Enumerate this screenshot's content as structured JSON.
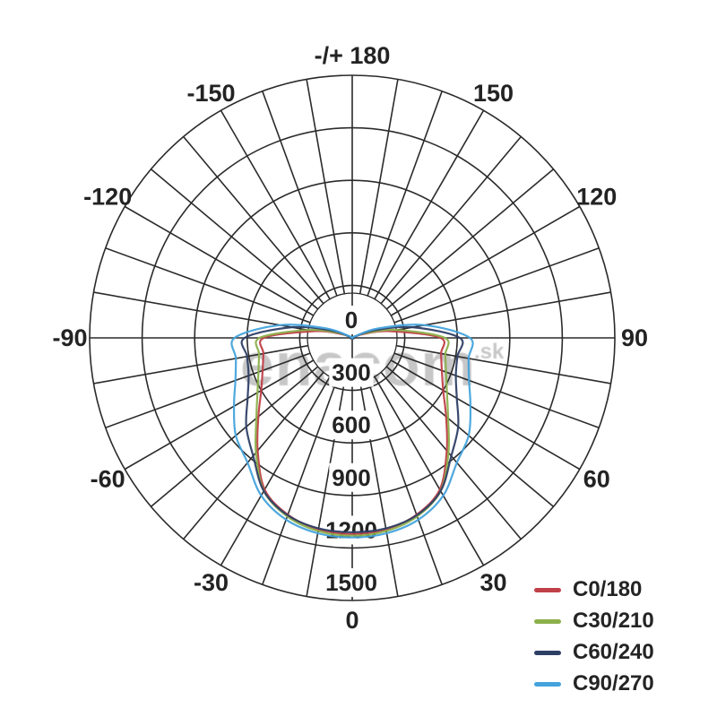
{
  "watermark": {
    "text": "enacom",
    "suffix": ".sk"
  },
  "legend": {
    "items": [
      {
        "label": "C0/180",
        "color": "#bf4048"
      },
      {
        "label": "C30/210",
        "color": "#8cb04c"
      },
      {
        "label": "C60/240",
        "color": "#2e3f66"
      },
      {
        "label": "C90/270",
        "color": "#44a3dc"
      }
    ]
  },
  "chart_data": {
    "type": "line",
    "subtype": "polar-photometric",
    "title": "",
    "grid": true,
    "grid_angle_step_deg": 10,
    "angle_zero_position": "bottom",
    "angle_labels": [
      {
        "angle": 0,
        "label": "0"
      },
      {
        "angle": 30,
        "label": "30"
      },
      {
        "angle": 60,
        "label": "60"
      },
      {
        "angle": 90,
        "label": "90"
      },
      {
        "angle": 120,
        "label": "120"
      },
      {
        "angle": 150,
        "label": "150"
      },
      {
        "angle": 180,
        "label": "-/+ 180"
      },
      {
        "angle": -150,
        "label": "-150"
      },
      {
        "angle": -120,
        "label": "-120"
      },
      {
        "angle": -90,
        "label": "-90"
      },
      {
        "angle": -60,
        "label": "-60"
      },
      {
        "angle": -30,
        "label": "-30"
      }
    ],
    "radial_ticks": [
      0,
      300,
      600,
      900,
      1200,
      1500
    ],
    "radial_max": 1500,
    "sample_angles_deg": [
      0,
      10,
      20,
      30,
      40,
      50,
      60,
      70,
      80,
      90,
      100,
      110,
      120,
      130,
      140,
      150,
      160,
      170,
      180
    ],
    "symmetric": true,
    "series": [
      {
        "name": "C0/180",
        "color": "#bf4048",
        "values": [
          1120,
          1110,
          1075,
          1000,
          840,
          700,
          600,
          545,
          515,
          505,
          220,
          60,
          0,
          0,
          0,
          0,
          0,
          0,
          0
        ]
      },
      {
        "name": "C30/210",
        "color": "#8cb04c",
        "values": [
          1130,
          1120,
          1085,
          1010,
          855,
          715,
          625,
          570,
          540,
          530,
          260,
          80,
          0,
          0,
          0,
          0,
          0,
          0,
          0
        ]
      },
      {
        "name": "C60/240",
        "color": "#2e3f66",
        "values": [
          1110,
          1105,
          1078,
          1010,
          880,
          790,
          690,
          630,
          610,
          615,
          350,
          120,
          0,
          0,
          0,
          0,
          0,
          0,
          0
        ]
      },
      {
        "name": "C90/270",
        "color": "#44a3dc",
        "values": [
          1140,
          1133,
          1105,
          1040,
          930,
          868,
          780,
          710,
          675,
          672,
          420,
          160,
          20,
          0,
          0,
          0,
          0,
          0,
          0
        ]
      }
    ]
  }
}
